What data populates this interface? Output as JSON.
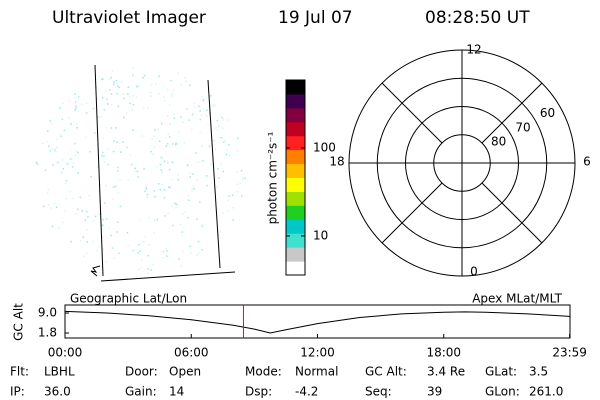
{
  "header": {
    "title": "Ultraviolet Imager",
    "date": "19 Jul 07",
    "time": "08:28:50 UT"
  },
  "chart_data": [
    {
      "type": "colorbar",
      "title": "photon cm⁻²s⁻¹",
      "log_scale": true,
      "ylim": [
        3.6,
        590
      ],
      "yticks": [
        10,
        100
      ],
      "colors": [
        "#ffffff",
        "#c8c8c8",
        "#40e0d0",
        "#00c8c8",
        "#20d020",
        "#a0e000",
        "#ffff00",
        "#ffc000",
        "#ff8000",
        "#ff2020",
        "#c00020",
        "#800040",
        "#400050",
        "#000000"
      ]
    },
    {
      "type": "polar",
      "rlim": [
        50,
        90
      ],
      "rticks": [
        60,
        70,
        80
      ],
      "angle_ticks": [
        0,
        6,
        12,
        18
      ]
    },
    {
      "type": "line",
      "ylabel": "GC Alt",
      "left_label": "Geographic Lat/Lon",
      "right_label": "Apex MLat/MLT",
      "xlim": [
        0,
        24
      ],
      "ylim": [
        0,
        11.9
      ],
      "xticks": [
        {
          "value": 0,
          "label": "00:00"
        },
        {
          "value": 6,
          "label": "06:00"
        },
        {
          "value": 12,
          "label": "12:00"
        },
        {
          "value": 18,
          "label": "18:00"
        },
        {
          "value": 23.983,
          "label": "23:59"
        }
      ],
      "yticks": [
        {
          "value": 9,
          "label": "9.0"
        },
        1.8
      ],
      "x": [
        0,
        2,
        4,
        6,
        8,
        9,
        9.75,
        10.5,
        12,
        14,
        16,
        18,
        19,
        20,
        22,
        23.983
      ],
      "values": [
        9.6,
        9.0,
        8.0,
        6.6,
        4.6,
        3.2,
        1.8,
        3.0,
        5.2,
        7.4,
        8.7,
        9.3,
        9.4,
        9.3,
        8.7,
        7.8
      ],
      "color": "#000000",
      "marker_time": 8.481,
      "marker_color": "#ff0000"
    }
  ],
  "info": [
    [
      [
        "Flt:",
        "LBHL"
      ],
      [
        "Door:",
        "Open"
      ],
      [
        "Mode:",
        "Normal"
      ],
      [
        "GC Alt:",
        "3.4 Re"
      ],
      [
        "GLat:",
        "3.5"
      ]
    ],
    [
      [
        "IP:",
        "36.0"
      ],
      [
        "Gain:",
        "14"
      ],
      [
        "Dsp:",
        "-4.2"
      ],
      [
        "Seq:",
        "39"
      ],
      [
        "GLon:",
        "261.0"
      ]
    ]
  ]
}
